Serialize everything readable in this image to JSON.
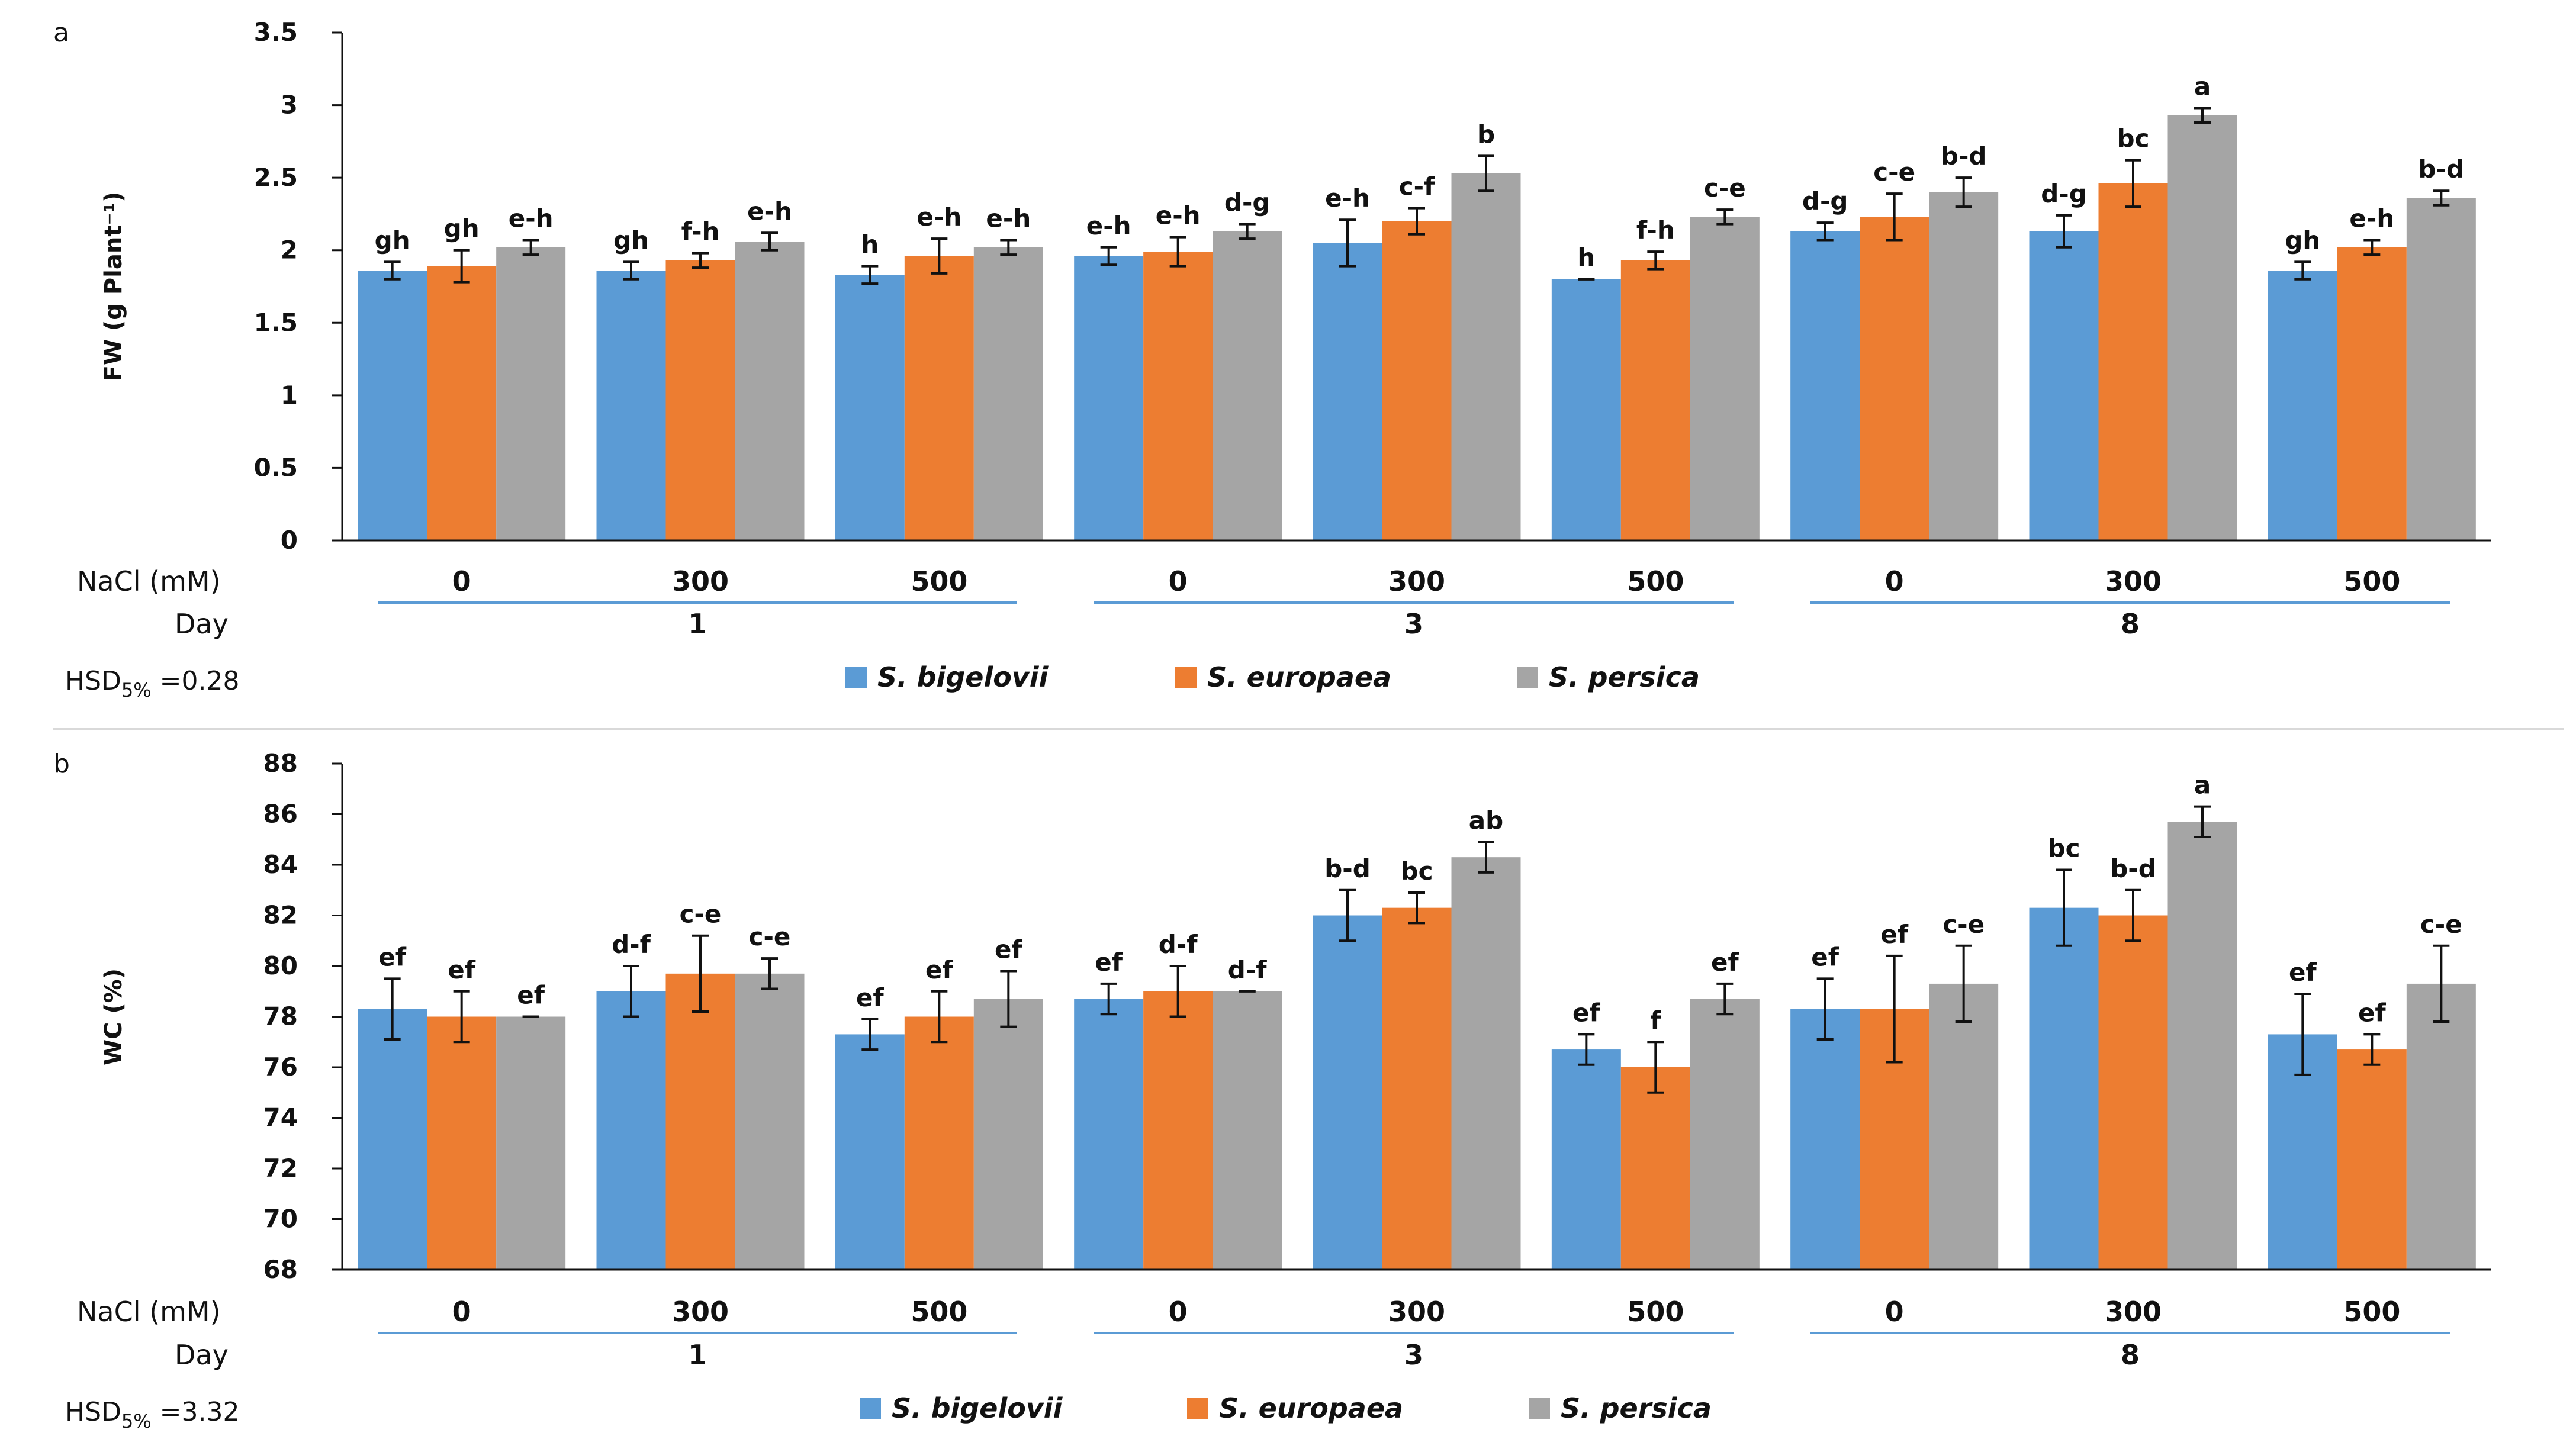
{
  "colors": {
    "bigelovii": "#5b9bd5",
    "europaea": "#ed7d31",
    "persica": "#a5a5a5",
    "day_underline": "#5b9bd5",
    "divider": "#d9d9d9"
  },
  "chart_data": [
    {
      "type": "bar",
      "panel": "a",
      "ylabel": "FW (g Plant⁻¹)",
      "ylim": [
        0,
        3.5
      ],
      "yticks": [
        0,
        0.5,
        1,
        1.5,
        2,
        2.5,
        3,
        3.5
      ],
      "ytick_labels": [
        "0",
        "0.5",
        "1",
        "1.5",
        "2",
        "2.5",
        "3",
        "3.5"
      ],
      "row1_label": "NaCl (mM)",
      "row2_label": "Day",
      "categories": [
        "0",
        "300",
        "500",
        "0",
        "300",
        "500",
        "0",
        "300",
        "500"
      ],
      "days": [
        {
          "label": "1",
          "first": 0,
          "last": 2
        },
        {
          "label": "3",
          "first": 3,
          "last": 5
        },
        {
          "label": "8",
          "first": 6,
          "last": 8
        }
      ],
      "hsd": {
        "prefix": "HSD",
        "sub": "5%",
        "value": " =0.28"
      },
      "series": [
        {
          "name": "S. bigelovii",
          "color": "#5b9bd5",
          "values": [
            1.86,
            1.86,
            1.83,
            1.96,
            2.05,
            1.8,
            2.13,
            2.13,
            1.86
          ],
          "errors": [
            0.06,
            0.06,
            0.06,
            0.06,
            0.16,
            0.0,
            0.06,
            0.11,
            0.06
          ],
          "labels": [
            "gh",
            "gh",
            "h",
            "e-h",
            "e-h",
            "h",
            "d-g",
            "d-g",
            "gh"
          ]
        },
        {
          "name": "S. europaea",
          "color": "#ed7d31",
          "values": [
            1.89,
            1.93,
            1.96,
            1.99,
            2.2,
            1.93,
            2.23,
            2.46,
            2.02
          ],
          "errors": [
            0.11,
            0.05,
            0.12,
            0.1,
            0.09,
            0.06,
            0.16,
            0.16,
            0.05
          ],
          "labels": [
            "gh",
            "f-h",
            "e-h",
            "e-h",
            "c-f",
            "f-h",
            "c-e",
            "bc",
            "e-h"
          ]
        },
        {
          "name": "S. persica",
          "color": "#a5a5a5",
          "values": [
            2.02,
            2.06,
            2.02,
            2.13,
            2.53,
            2.23,
            2.4,
            2.93,
            2.36
          ],
          "errors": [
            0.05,
            0.06,
            0.05,
            0.05,
            0.12,
            0.05,
            0.1,
            0.05,
            0.05
          ],
          "labels": [
            "e-h",
            "e-h",
            "e-h",
            "d-g",
            "b",
            "c-e",
            "b-d",
            "a",
            "b-d"
          ]
        }
      ]
    },
    {
      "type": "bar",
      "panel": "b",
      "ylabel": "WC (%)",
      "ylim": [
        68,
        88
      ],
      "yticks": [
        68,
        70,
        72,
        74,
        76,
        78,
        80,
        82,
        84,
        86,
        88
      ],
      "ytick_labels": [
        "68",
        "70",
        "72",
        "74",
        "76",
        "78",
        "80",
        "82",
        "84",
        "86",
        "88"
      ],
      "row1_label": "NaCl (mM)",
      "row2_label": "Day",
      "categories": [
        "0",
        "300",
        "500",
        "0",
        "300",
        "500",
        "0",
        "300",
        "500"
      ],
      "days": [
        {
          "label": "1",
          "first": 0,
          "last": 2
        },
        {
          "label": "3",
          "first": 3,
          "last": 5
        },
        {
          "label": "8",
          "first": 6,
          "last": 8
        }
      ],
      "hsd": {
        "prefix": "HSD",
        "sub": "5%",
        "value": " =3.32"
      },
      "series": [
        {
          "name": "S. bigelovii",
          "color": "#5b9bd5",
          "values": [
            78.3,
            79.0,
            77.3,
            78.7,
            82.0,
            76.7,
            78.3,
            82.3,
            77.3
          ],
          "errors": [
            1.2,
            1.0,
            0.6,
            0.6,
            1.0,
            0.6,
            1.2,
            1.5,
            1.6
          ],
          "labels": [
            "ef",
            "d-f",
            "ef",
            "ef",
            "b-d",
            "ef",
            "ef",
            "bc",
            "ef"
          ]
        },
        {
          "name": "S. europaea",
          "color": "#ed7d31",
          "values": [
            78.0,
            79.7,
            78.0,
            79.0,
            82.3,
            76.0,
            78.3,
            82.0,
            76.7
          ],
          "errors": [
            1.0,
            1.5,
            1.0,
            1.0,
            0.6,
            1.0,
            2.1,
            1.0,
            0.6
          ],
          "labels": [
            "ef",
            "c-e",
            "ef",
            "d-f",
            "bc",
            "f",
            "ef",
            "b-d",
            "ef"
          ]
        },
        {
          "name": "S. persica",
          "color": "#a5a5a5",
          "values": [
            78.0,
            79.7,
            78.7,
            79.0,
            84.3,
            78.7,
            79.3,
            85.7,
            79.3
          ],
          "errors": [
            0.0,
            0.6,
            1.1,
            0.0,
            0.6,
            0.6,
            1.5,
            0.6,
            1.5
          ],
          "labels": [
            "ef",
            "c-e",
            "ef",
            "d-f",
            "ab",
            "ef",
            "c-e",
            "a",
            "c-e"
          ]
        }
      ]
    }
  ]
}
